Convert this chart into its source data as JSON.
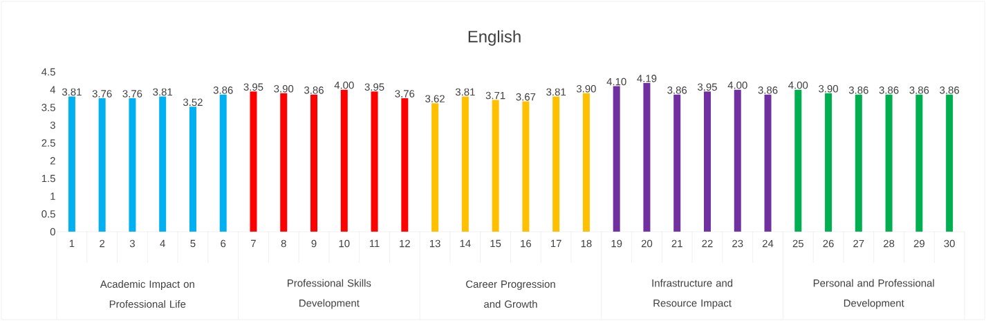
{
  "chart_data": {
    "type": "bar",
    "title": "English",
    "categories": [
      "1",
      "2",
      "3",
      "4",
      "5",
      "6",
      "7",
      "8",
      "9",
      "10",
      "11",
      "12",
      "13",
      "14",
      "15",
      "16",
      "17",
      "18",
      "19",
      "20",
      "21",
      "22",
      "23",
      "24",
      "25",
      "26",
      "27",
      "28",
      "29",
      "30"
    ],
    "series": [
      {
        "color": "#00b0f0",
        "values": [
          3.81,
          3.76,
          3.76,
          3.81,
          3.52,
          3.86,
          null,
          null,
          null,
          null,
          null,
          null,
          null,
          null,
          null,
          null,
          null,
          null,
          null,
          null,
          null,
          null,
          null,
          null,
          null,
          null,
          null,
          null,
          null,
          null
        ],
        "value_labels": [
          "3.81",
          "3.76",
          "3.76",
          "3.81",
          "3.52",
          "3.86",
          null,
          null,
          null,
          null,
          null,
          null,
          null,
          null,
          null,
          null,
          null,
          null,
          null,
          null,
          null,
          null,
          null,
          null,
          null,
          null,
          null,
          null,
          null,
          null
        ]
      },
      {
        "color": "#ff0000",
        "values": [
          null,
          null,
          null,
          null,
          null,
          null,
          3.95,
          3.9,
          3.86,
          4.0,
          3.95,
          3.76,
          null,
          null,
          null,
          null,
          null,
          null,
          null,
          null,
          null,
          null,
          null,
          null,
          null,
          null,
          null,
          null,
          null,
          null
        ],
        "value_labels": [
          null,
          null,
          null,
          null,
          null,
          null,
          "3.95",
          "3.90",
          "3.86",
          "4.00",
          "3.95",
          "3.76",
          null,
          null,
          null,
          null,
          null,
          null,
          null,
          null,
          null,
          null,
          null,
          null,
          null,
          null,
          null,
          null,
          null,
          null
        ]
      },
      {
        "color": "#ffc000",
        "values": [
          null,
          null,
          null,
          null,
          null,
          null,
          null,
          null,
          null,
          null,
          null,
          null,
          3.62,
          3.81,
          3.71,
          3.67,
          3.81,
          3.9,
          null,
          null,
          null,
          null,
          null,
          null,
          null,
          null,
          null,
          null,
          null,
          null
        ],
        "value_labels": [
          null,
          null,
          null,
          null,
          null,
          null,
          null,
          null,
          null,
          null,
          null,
          null,
          "3.62",
          "3.81",
          "3.71",
          "3.67",
          "3.81",
          "3.90",
          null,
          null,
          null,
          null,
          null,
          null,
          null,
          null,
          null,
          null,
          null,
          null
        ]
      },
      {
        "color": "#7030a0",
        "values": [
          null,
          null,
          null,
          null,
          null,
          null,
          null,
          null,
          null,
          null,
          null,
          null,
          null,
          null,
          null,
          null,
          null,
          null,
          4.1,
          4.19,
          3.86,
          3.95,
          4.0,
          3.86,
          null,
          null,
          null,
          null,
          null,
          null
        ],
        "value_labels": [
          null,
          null,
          null,
          null,
          null,
          null,
          null,
          null,
          null,
          null,
          null,
          null,
          null,
          null,
          null,
          null,
          null,
          null,
          "4.10",
          "4.19",
          "3.86",
          "3.95",
          "4.00",
          "3.86",
          null,
          null,
          null,
          null,
          null,
          null
        ]
      },
      {
        "color": "#00b050",
        "values": [
          null,
          null,
          null,
          null,
          null,
          null,
          null,
          null,
          null,
          null,
          null,
          null,
          null,
          null,
          null,
          null,
          null,
          null,
          null,
          null,
          null,
          null,
          null,
          null,
          4.0,
          3.9,
          3.86,
          3.86,
          3.86,
          3.86
        ],
        "value_labels": [
          null,
          null,
          null,
          null,
          null,
          null,
          null,
          null,
          null,
          null,
          null,
          null,
          null,
          null,
          null,
          null,
          null,
          null,
          null,
          null,
          null,
          null,
          null,
          null,
          "4.00",
          "3.90",
          "3.86",
          "3.86",
          "3.86",
          "3.86"
        ]
      }
    ],
    "annotations": [
      "Academic Impact on Professional Life",
      "Professional Skills Development",
      "Career Progression and Growth",
      "Infrastructure and Resource Impact",
      "Personal and Professional Development"
    ],
    "ylim": [
      0,
      4.5
    ],
    "yticks": [
      0,
      0.5,
      1,
      1.5,
      2,
      2.5,
      3,
      3.5,
      4,
      4.5
    ]
  }
}
